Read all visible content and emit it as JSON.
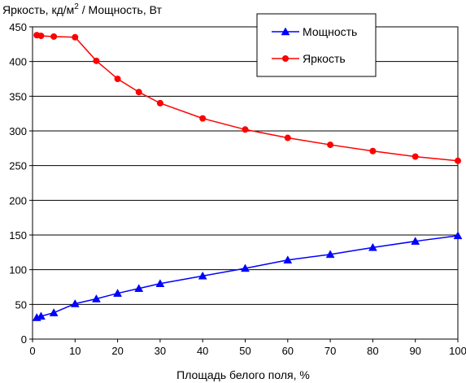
{
  "chart_data": {
    "type": "line",
    "ylabel_prefix": "Яркость, кд/м",
    "ylabel_sup": "2",
    "ylabel_suffix": " / Мощность, Вт",
    "xlabel": "Площадь белого поля, %",
    "xlim": [
      0,
      100
    ],
    "ylim": [
      0,
      450
    ],
    "x_ticks": [
      0,
      10,
      20,
      30,
      40,
      50,
      60,
      70,
      80,
      90,
      100
    ],
    "y_ticks": [
      0,
      50,
      100,
      150,
      200,
      250,
      300,
      350,
      400,
      450
    ],
    "grid": "horizontal",
    "legend_position": "top-right",
    "series": [
      {
        "name": "Мощность",
        "color": "#0000ff",
        "marker": "triangle",
        "x": [
          1,
          2,
          5,
          10,
          15,
          20,
          25,
          30,
          40,
          50,
          60,
          70,
          80,
          90,
          100
        ],
        "y": [
          31,
          33,
          38,
          51,
          58,
          66,
          73,
          80,
          91,
          102,
          114,
          122,
          132,
          141,
          149
        ]
      },
      {
        "name": "Яркость",
        "color": "#ff0000",
        "marker": "circle",
        "x": [
          1,
          2,
          5,
          10,
          15,
          20,
          25,
          30,
          40,
          50,
          60,
          70,
          80,
          90,
          100
        ],
        "y": [
          438,
          437,
          436,
          435,
          401,
          375,
          356,
          340,
          318,
          302,
          290,
          280,
          271,
          263,
          257
        ]
      }
    ]
  }
}
